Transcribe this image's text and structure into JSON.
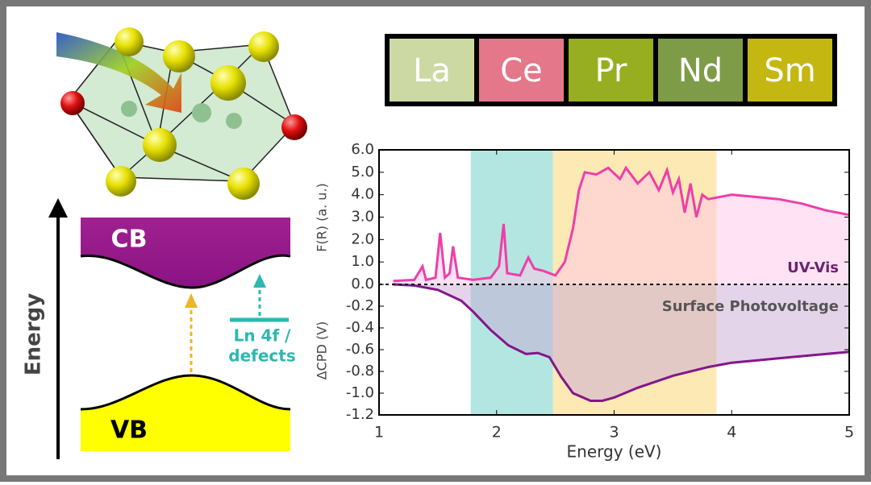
{
  "legend_boxes": [
    {
      "label": "La",
      "color": "#cdd9a3"
    },
    {
      "label": "Ce",
      "color": "#e4778a"
    },
    {
      "label": "Pr",
      "color": "#97ae20"
    },
    {
      "label": "Nd",
      "color": "#7e9c48"
    },
    {
      "label": "Sm",
      "color": "#c5b711"
    }
  ],
  "diagram": {
    "cb": "CB",
    "vb": "VB",
    "axis": "Energy",
    "level_label": [
      "Ln 4f /",
      "defects"
    ]
  },
  "chart_data": {
    "type": "line",
    "x_label": "Energy (eV)",
    "y_label": "F(R) (a. u.)",
    "y2_label": "ΔCPD (V)",
    "xlim": [
      1,
      5
    ],
    "xticks": [
      1,
      2,
      3,
      4,
      5
    ],
    "ylim": [
      0,
      6
    ],
    "yticks": [
      {
        "value": 0,
        "label": "0.0"
      },
      {
        "value": 1,
        "label": "1.0"
      },
      {
        "value": 2,
        "label": "2.0"
      },
      {
        "value": 3,
        "label": "3.0"
      },
      {
        "value": 4,
        "label": "4.0"
      },
      {
        "value": 5,
        "label": "5.0"
      },
      {
        "value": 6,
        "label": "6.0"
      }
    ],
    "y2lim": [
      -1.2,
      0
    ],
    "y2ticks": [
      -0.2,
      -0.4,
      -0.6,
      -0.8,
      {
        "value": -1,
        "label": "-1.0"
      },
      -1.2
    ],
    "bands": [
      {
        "from": 1.78,
        "to": 2.48,
        "color": "#b3e6e1"
      },
      {
        "from": 2.48,
        "to": 3.87,
        "color": "#fde9b4"
      }
    ],
    "series": [
      {
        "name": "UV-Vis",
        "color": "#ee3fa8",
        "fill": "#ffc6ea",
        "axis": "y",
        "x": [
          1.12,
          1.3,
          1.37,
          1.4,
          1.48,
          1.52,
          1.56,
          1.6,
          1.63,
          1.67,
          1.8,
          1.95,
          2.02,
          2.06,
          2.09,
          2.2,
          2.27,
          2.32,
          2.4,
          2.5,
          2.58,
          2.65,
          2.7,
          2.75,
          2.85,
          2.95,
          3.05,
          3.1,
          3.2,
          3.3,
          3.38,
          3.45,
          3.5,
          3.55,
          3.6,
          3.65,
          3.7,
          3.75,
          3.8,
          4.0,
          4.2,
          4.4,
          4.6,
          4.8,
          5.0
        ],
        "values": [
          0.15,
          0.2,
          0.8,
          0.2,
          0.3,
          2.3,
          0.3,
          0.5,
          1.7,
          0.3,
          0.2,
          0.3,
          0.8,
          2.7,
          0.5,
          0.4,
          1.2,
          0.7,
          0.6,
          0.4,
          1.0,
          2.5,
          4.2,
          5.0,
          4.9,
          5.2,
          4.7,
          5.2,
          4.5,
          5.0,
          4.2,
          5.1,
          4.1,
          4.7,
          3.2,
          4.5,
          3.0,
          4.0,
          3.8,
          4.0,
          3.9,
          3.8,
          3.6,
          3.3,
          3.1
        ]
      },
      {
        "name": "Surface Photovoltage",
        "color": "#84168a",
        "fill": "#c9a9d6",
        "axis": "y2",
        "x": [
          1.12,
          1.3,
          1.5,
          1.7,
          1.8,
          1.95,
          2.1,
          2.25,
          2.35,
          2.45,
          2.55,
          2.65,
          2.8,
          2.9,
          3.0,
          3.2,
          3.5,
          3.8,
          4.0,
          4.5,
          5.0
        ],
        "values": [
          0,
          -0.01,
          -0.05,
          -0.15,
          -0.25,
          -0.42,
          -0.56,
          -0.64,
          -0.63,
          -0.67,
          -0.85,
          -1.0,
          -1.07,
          -1.07,
          -1.04,
          -0.95,
          -0.84,
          -0.76,
          -0.72,
          -0.67,
          -0.62
        ]
      }
    ]
  }
}
